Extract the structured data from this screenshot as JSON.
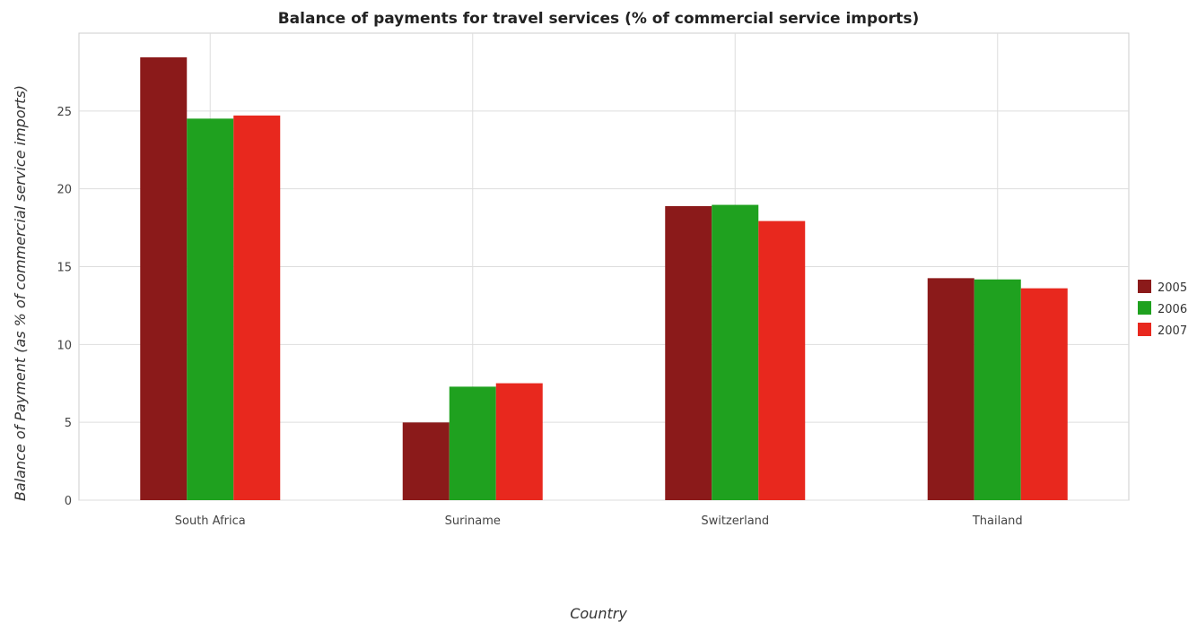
{
  "chart_data": {
    "type": "bar",
    "title": "Balance of payments for travel services (% of commercial service imports)",
    "xlabel": "Country",
    "ylabel": "Balance of Payment (as % of commercial service imports)",
    "categories": [
      "South Africa",
      "Suriname",
      "Switzerland",
      "Thailand"
    ],
    "series": [
      {
        "name": "2005",
        "color": "#8b1a1a",
        "values": [
          28.45,
          4.99,
          18.89,
          14.26
        ]
      },
      {
        "name": "2006",
        "color": "#1fa11f",
        "values": [
          24.51,
          7.29,
          18.97,
          14.18
        ]
      },
      {
        "name": "2007",
        "color": "#e8281e",
        "values": [
          24.71,
          7.51,
          17.93,
          13.61
        ]
      }
    ],
    "ylim": [
      0,
      30
    ],
    "yticks": [
      "0",
      "5",
      "10",
      "15",
      "20",
      "25"
    ],
    "grid": true,
    "legend_position": "right"
  }
}
